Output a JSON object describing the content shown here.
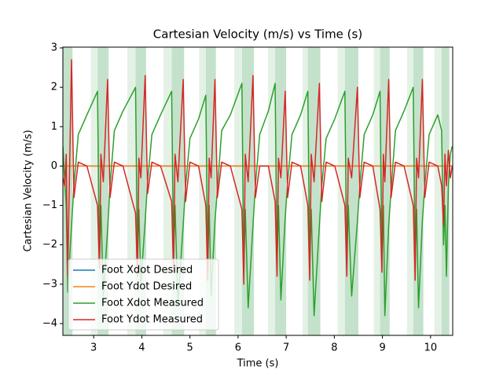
{
  "chart_data": {
    "type": "line",
    "title": "Cartesian Velocity (m/s) vs Time (s)",
    "x_label": "Time (s)",
    "y_label": "Cartesian Velocity (m/s)",
    "xlim": [
      2.36,
      10.46
    ],
    "ylim": [
      -4.3,
      3.02
    ],
    "xticks": [
      3,
      4,
      5,
      6,
      7,
      8,
      9,
      10
    ],
    "yticks": [
      {
        "value": -4,
        "label": "−4"
      },
      {
        "value": -3,
        "label": "−3"
      },
      {
        "value": -2,
        "label": "−2"
      },
      {
        "value": -1,
        "label": "−1"
      },
      0,
      1,
      2,
      3
    ],
    "legend": "lower left",
    "spans": [
      {
        "x0": 2.36,
        "x1": 2.56,
        "color": "#c4e2cb"
      },
      {
        "x0": 2.94,
        "x1": 3.08,
        "color": "#e4f2e6"
      },
      {
        "x0": 3.08,
        "x1": 3.31,
        "color": "#c4e2cb"
      },
      {
        "x0": 3.7,
        "x1": 3.87,
        "color": "#e4f2e6"
      },
      {
        "x0": 3.87,
        "x1": 4.09,
        "color": "#c4e2cb"
      },
      {
        "x0": 4.45,
        "x1": 4.62,
        "color": "#e4f2e6"
      },
      {
        "x0": 4.62,
        "x1": 4.88,
        "color": "#c4e2cb"
      },
      {
        "x0": 5.19,
        "x1": 5.33,
        "color": "#e4f2e6"
      },
      {
        "x0": 5.33,
        "x1": 5.54,
        "color": "#c4e2cb"
      },
      {
        "x0": 5.92,
        "x1": 6.08,
        "color": "#e4f2e6"
      },
      {
        "x0": 6.08,
        "x1": 6.33,
        "color": "#c4e2cb"
      },
      {
        "x0": 6.62,
        "x1": 6.77,
        "color": "#e4f2e6"
      },
      {
        "x0": 6.77,
        "x1": 7.0,
        "color": "#c4e2cb"
      },
      {
        "x0": 7.34,
        "x1": 7.45,
        "color": "#e4f2e6"
      },
      {
        "x0": 7.45,
        "x1": 7.71,
        "color": "#c4e2cb"
      },
      {
        "x0": 8.07,
        "x1": 8.22,
        "color": "#e4f2e6"
      },
      {
        "x0": 8.22,
        "x1": 8.5,
        "color": "#c4e2cb"
      },
      {
        "x0": 8.82,
        "x1": 8.95,
        "color": "#e4f2e6"
      },
      {
        "x0": 8.95,
        "x1": 9.15,
        "color": "#c4e2cb"
      },
      {
        "x0": 9.51,
        "x1": 9.64,
        "color": "#e4f2e6"
      },
      {
        "x0": 9.64,
        "x1": 9.85,
        "color": "#c4e2cb"
      },
      {
        "x0": 10.08,
        "x1": 10.23,
        "color": "#e4f2e6"
      },
      {
        "x0": 10.23,
        "x1": 10.39,
        "color": "#c4e2cb"
      }
    ],
    "x": [
      2.36,
      2.4,
      2.43,
      2.46,
      2.54,
      2.59,
      2.68,
      2.86,
      3.08,
      3.12,
      3.15,
      3.2,
      3.29,
      3.34,
      3.43,
      3.61,
      3.87,
      3.91,
      3.94,
      3.98,
      4.07,
      4.12,
      4.21,
      4.39,
      4.62,
      4.66,
      4.69,
      4.75,
      4.86,
      4.91,
      5.0,
      5.18,
      5.33,
      5.37,
      5.4,
      5.44,
      5.52,
      5.57,
      5.66,
      5.84,
      6.08,
      6.12,
      6.15,
      6.21,
      6.31,
      6.36,
      6.45,
      6.63,
      6.77,
      6.81,
      6.84,
      6.89,
      6.98,
      7.03,
      7.12,
      7.3,
      7.45,
      7.49,
      7.52,
      7.58,
      7.69,
      7.74,
      7.83,
      8.01,
      8.22,
      8.26,
      8.29,
      8.36,
      8.48,
      8.53,
      8.62,
      8.8,
      8.95,
      8.99,
      9.02,
      9.05,
      9.13,
      9.18,
      9.27,
      9.45,
      9.64,
      9.68,
      9.71,
      9.75,
      9.83,
      9.88,
      9.97,
      10.15,
      10.23,
      10.27,
      10.3,
      10.33,
      10.37,
      10.41,
      10.45
    ],
    "series": [
      {
        "name": "Foot Xdot Desired",
        "color": "#1f77b4",
        "values": [
          0,
          0,
          0,
          0,
          0,
          0,
          0,
          0,
          0,
          0,
          0,
          0,
          0,
          0,
          0,
          0,
          0,
          0,
          0,
          0,
          0,
          0,
          0,
          0,
          0,
          0,
          0,
          0,
          0,
          0,
          0,
          0,
          0,
          0,
          0,
          0,
          0,
          0,
          0,
          0,
          0,
          0,
          0,
          0,
          0,
          0,
          0,
          0,
          0,
          0,
          0,
          0,
          0,
          0,
          0,
          0,
          0,
          0,
          0,
          0,
          0,
          0,
          0,
          0,
          0,
          0,
          0,
          0,
          0,
          0,
          0,
          0,
          0,
          0,
          0,
          0,
          0,
          0,
          0,
          0,
          0,
          0,
          0,
          0,
          0,
          0,
          0,
          0,
          0,
          0,
          0,
          0,
          0,
          0,
          0
        ]
      },
      {
        "name": "Foot Ydot Desired",
        "color": "#ff7f0e",
        "values": [
          0,
          0,
          0,
          0,
          0,
          0,
          0,
          0,
          0,
          0,
          0,
          0,
          0,
          0,
          0,
          0,
          0,
          0,
          0,
          0,
          0,
          0,
          0,
          0,
          0,
          0,
          0,
          0,
          0,
          0,
          0,
          0,
          0,
          0,
          0,
          0,
          0,
          0,
          0,
          0,
          0,
          0,
          0,
          0,
          0,
          0,
          0,
          0,
          0,
          0,
          0,
          0,
          0,
          0,
          0,
          0,
          0,
          0,
          0,
          0,
          0,
          0,
          0,
          0,
          0,
          0,
          0,
          0,
          0,
          0,
          0,
          0,
          0,
          0,
          0,
          0,
          0,
          0,
          0,
          0,
          0,
          0,
          0,
          0,
          0,
          0,
          0,
          0,
          0,
          0,
          0,
          0,
          0,
          0,
          0
        ]
      },
      {
        "name": "Foot Xdot Measured",
        "color": "#2ca02c",
        "values": [
          0.5,
          -0.4,
          -1.0,
          -3.2,
          -1.5,
          -0.5,
          0.8,
          1.3,
          1.9,
          -2.5,
          -1.0,
          -3.3,
          -1.6,
          -0.5,
          0.9,
          1.4,
          2.0,
          -2.4,
          -1.1,
          -3.0,
          -1.4,
          -0.4,
          0.8,
          1.3,
          1.9,
          -2.2,
          -1.0,
          -3.5,
          -1.5,
          -0.5,
          0.7,
          1.2,
          1.8,
          -2.5,
          -1.0,
          -3.3,
          -1.4,
          -0.6,
          0.9,
          1.3,
          2.1,
          -2.6,
          -1.1,
          -3.6,
          -1.5,
          -0.5,
          0.8,
          1.4,
          2.1,
          -2.4,
          -1.0,
          -3.4,
          -1.3,
          -0.4,
          0.8,
          1.3,
          1.9,
          -2.5,
          -1.1,
          -3.8,
          -1.5,
          -0.5,
          0.7,
          1.2,
          1.9,
          -2.6,
          -1.0,
          -3.3,
          -1.4,
          -0.5,
          0.8,
          1.3,
          1.9,
          -2.4,
          -1.0,
          -3.8,
          -1.5,
          -0.6,
          0.9,
          1.4,
          2.0,
          -2.5,
          -1.1,
          -3.6,
          -1.4,
          -0.5,
          0.8,
          1.3,
          0.9,
          -2.0,
          -1.0,
          -2.8,
          -0.5,
          0.3,
          0.5
        ]
      },
      {
        "name": "Foot Ydot Measured",
        "color": "#d62728",
        "values": [
          -0.3,
          -0.5,
          0.3,
          -2.8,
          2.7,
          -0.8,
          0.1,
          0.0,
          -1.0,
          -2.6,
          0.3,
          -0.4,
          2.2,
          -0.8,
          0.1,
          0.0,
          -1.2,
          -2.8,
          0.2,
          -0.3,
          2.3,
          -0.7,
          0.1,
          0.0,
          -0.9,
          -2.7,
          0.3,
          -0.4,
          2.2,
          -0.9,
          0.1,
          0.0,
          -1.0,
          -2.9,
          0.2,
          -0.3,
          2.2,
          -0.8,
          0.1,
          0.0,
          -1.1,
          -3.0,
          0.3,
          -0.4,
          2.3,
          -0.8,
          0.0,
          0.0,
          -0.9,
          -2.8,
          0.2,
          -0.3,
          1.9,
          -0.8,
          0.1,
          0.0,
          -1.0,
          -2.9,
          0.3,
          -0.4,
          2.1,
          -0.9,
          0.1,
          0.0,
          -1.0,
          -2.8,
          0.2,
          -0.3,
          2.0,
          -0.8,
          0.1,
          0.0,
          -1.1,
          -2.7,
          0.3,
          -0.4,
          2.2,
          -0.8,
          0.1,
          0.0,
          -1.0,
          -2.9,
          0.2,
          -0.3,
          2.2,
          -0.8,
          0.1,
          0.0,
          -0.5,
          -1.5,
          0.3,
          -0.5,
          0.4,
          -0.3,
          0.0
        ]
      }
    ]
  }
}
